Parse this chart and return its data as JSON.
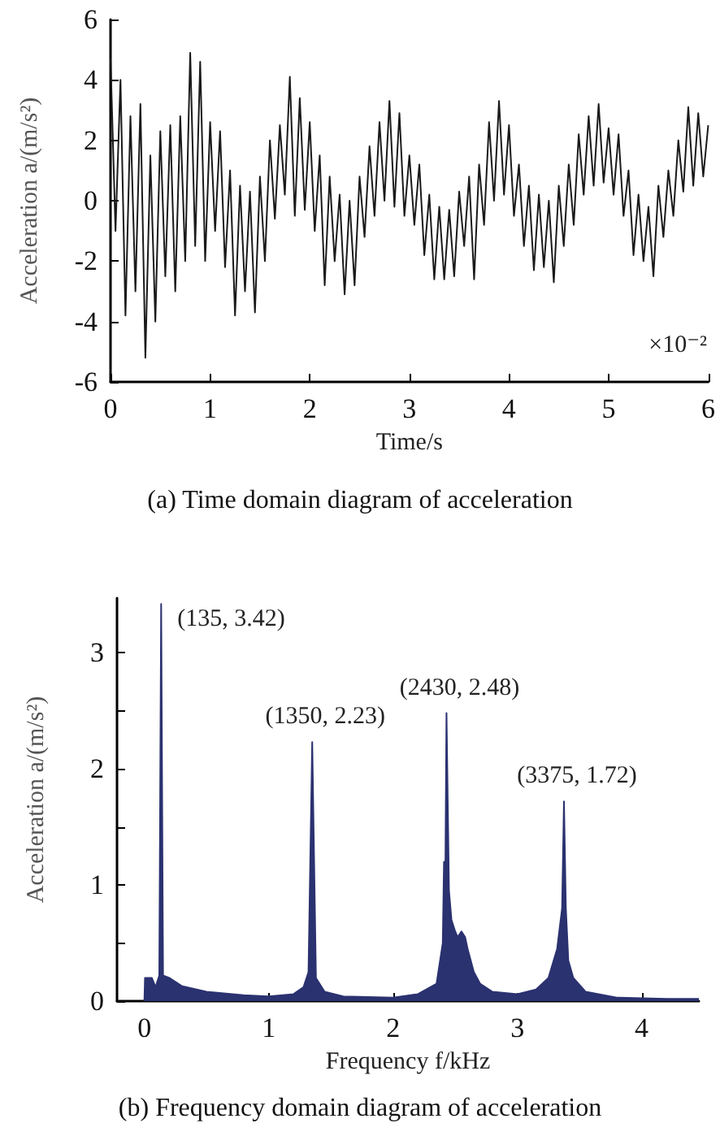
{
  "chart_data": [
    {
      "type": "line",
      "title": "(a) Time domain diagram of acceleration",
      "xlabel": "Time/s",
      "ylabel": "Acceleration a/(m/s²)",
      "xlim": [
        0,
        6
      ],
      "xticks": [
        0,
        1,
        2,
        3,
        4,
        5,
        6
      ],
      "ylim": [
        -6,
        6
      ],
      "yticks": [
        -6,
        -4,
        -2,
        0,
        2,
        4,
        6
      ],
      "annotations": [
        "×10⁻²"
      ],
      "series": [
        {
          "color": "#1a1a1a",
          "x": [
            0,
            0.05,
            0.1,
            0.15,
            0.2,
            0.25,
            0.3,
            0.35,
            0.4,
            0.45,
            0.5,
            0.55,
            0.6,
            0.65,
            0.7,
            0.75,
            0.8,
            0.85,
            0.9,
            0.95,
            1,
            1.05,
            1.1,
            1.15,
            1.2,
            1.25,
            1.3,
            1.35,
            1.4,
            1.45,
            1.5,
            1.55,
            1.6,
            1.65,
            1.7,
            1.75,
            1.8,
            1.85,
            1.9,
            1.95,
            2,
            2.05,
            2.1,
            2.15,
            2.2,
            2.25,
            2.3,
            2.35,
            2.4,
            2.45,
            2.5,
            2.55,
            2.6,
            2.65,
            2.7,
            2.75,
            2.8,
            2.85,
            2.9,
            2.95,
            3,
            3.05,
            3.1,
            3.15,
            3.2,
            3.25,
            3.3,
            3.35,
            3.4,
            3.45,
            3.5,
            3.55,
            3.6,
            3.65,
            3.7,
            3.75,
            3.8,
            3.85,
            3.9,
            3.95,
            4,
            4.05,
            4.1,
            4.15,
            4.2,
            4.25,
            4.3,
            4.35,
            4.4,
            4.45,
            4.5,
            4.55,
            4.6,
            4.65,
            4.7,
            4.75,
            4.8,
            4.85,
            4.9,
            4.95,
            5,
            5.05,
            5.1,
            5.15,
            5.2,
            5.25,
            5.3,
            5.35,
            5.4,
            5.45,
            5.5,
            5.55,
            5.6,
            5.65,
            5.7,
            5.75,
            5.8,
            5.85,
            5.9,
            5.95,
            6
          ],
          "values": [
            4.7,
            -1.0,
            4.0,
            -3.8,
            2.8,
            -3.0,
            3.2,
            -5.2,
            1.5,
            -4.0,
            2.3,
            -2.5,
            2.5,
            -3.0,
            2.8,
            -2.0,
            4.9,
            -1.5,
            4.6,
            -2.0,
            2.6,
            -1.0,
            2.3,
            -2.2,
            1.0,
            -3.8,
            0.5,
            -3.0,
            0.3,
            -3.7,
            0.8,
            -2.0,
            2.0,
            -0.6,
            2.5,
            0.2,
            4.1,
            -0.5,
            3.4,
            -0.3,
            2.6,
            -1.0,
            1.5,
            -2.8,
            0.8,
            -2.0,
            0.2,
            -3.1,
            0.0,
            -2.8,
            0.8,
            -1.2,
            1.8,
            -0.5,
            2.6,
            0.0,
            3.3,
            -0.2,
            2.9,
            -0.5,
            1.5,
            -0.8,
            1.2,
            -1.8,
            0.2,
            -2.6,
            -0.2,
            -2.6,
            -0.3,
            -2.5,
            0.3,
            -1.5,
            0.8,
            -2.6,
            1.2,
            -0.8,
            2.6,
            0.0,
            3.3,
            0.2,
            2.5,
            -0.5,
            1.2,
            -1.5,
            0.5,
            -2.3,
            0.2,
            -2.2,
            0.0,
            -2.7,
            0.5,
            -1.5,
            1.2,
            -0.8,
            2.2,
            0.2,
            2.8,
            0.5,
            3.2,
            0.6,
            2.4,
            0.2,
            2.2,
            -0.5,
            1.0,
            -1.8,
            0.2,
            -2.0,
            -0.2,
            -2.5,
            0.5,
            -1.2,
            1.0,
            -0.5,
            2.0,
            0.3,
            3.1,
            0.5,
            2.9,
            0.8,
            2.5
          ]
        }
      ]
    },
    {
      "type": "area",
      "title": "(b) Frequency domain diagram of acceleration",
      "xlabel": "Frequency f/kHz",
      "ylabel": "Acceleration a/(m/s²)",
      "xlim": [
        -0.22,
        4.46
      ],
      "xticks": [
        0,
        {
          "value": 0.5,
          "label": null
        },
        1,
        {
          "value": 1.5,
          "label": null
        },
        2,
        {
          "value": 2.5,
          "label": null
        },
        3,
        {
          "value": 3.5,
          "label": null
        },
        4
      ],
      "ylim": [
        0,
        3.47
      ],
      "yticks": [
        0,
        {
          "value": 0.5,
          "label": null
        },
        1,
        {
          "value": 1.5,
          "label": null
        },
        2,
        {
          "value": 2.5,
          "label": null
        },
        3
      ],
      "annotations": [
        {
          "text": "(135, 3.42)",
          "x": 0.135,
          "y": 3.42
        },
        {
          "text": "(1350, 2.23)",
          "x": 1.35,
          "y": 2.23
        },
        {
          "text": "(2430, 2.48)",
          "x": 2.43,
          "y": 2.48
        },
        {
          "text": "(3375, 1.72)",
          "x": 3.375,
          "y": 1.72
        }
      ],
      "series": [
        {
          "color": "#2b3270",
          "x": [
            0,
            0.005,
            0.06,
            0.09,
            0.12,
            0.135,
            0.15,
            0.2,
            0.3,
            0.5,
            0.8,
            1.0,
            1.2,
            1.28,
            1.32,
            1.35,
            1.38,
            1.45,
            1.6,
            2.0,
            2.2,
            2.35,
            2.4,
            2.41,
            2.42,
            2.43,
            2.45,
            2.47,
            2.5,
            2.52,
            2.55,
            2.58,
            2.6,
            2.65,
            2.7,
            2.8,
            3.0,
            3.15,
            3.25,
            3.32,
            3.36,
            3.375,
            3.39,
            3.41,
            3.45,
            3.55,
            3.8,
            4.2,
            4.46
          ],
          "values": [
            0,
            0.2,
            0.2,
            0.12,
            0.22,
            3.42,
            0.22,
            0.2,
            0.13,
            0.08,
            0.05,
            0.04,
            0.06,
            0.12,
            0.25,
            2.23,
            0.2,
            0.08,
            0.04,
            0.03,
            0.06,
            0.15,
            0.5,
            1.2,
            0.95,
            2.48,
            0.95,
            0.7,
            0.6,
            0.55,
            0.6,
            0.55,
            0.45,
            0.25,
            0.15,
            0.08,
            0.06,
            0.1,
            0.2,
            0.45,
            0.8,
            1.72,
            0.8,
            0.35,
            0.2,
            0.08,
            0.03,
            0.02,
            0.02
          ]
        }
      ]
    }
  ]
}
